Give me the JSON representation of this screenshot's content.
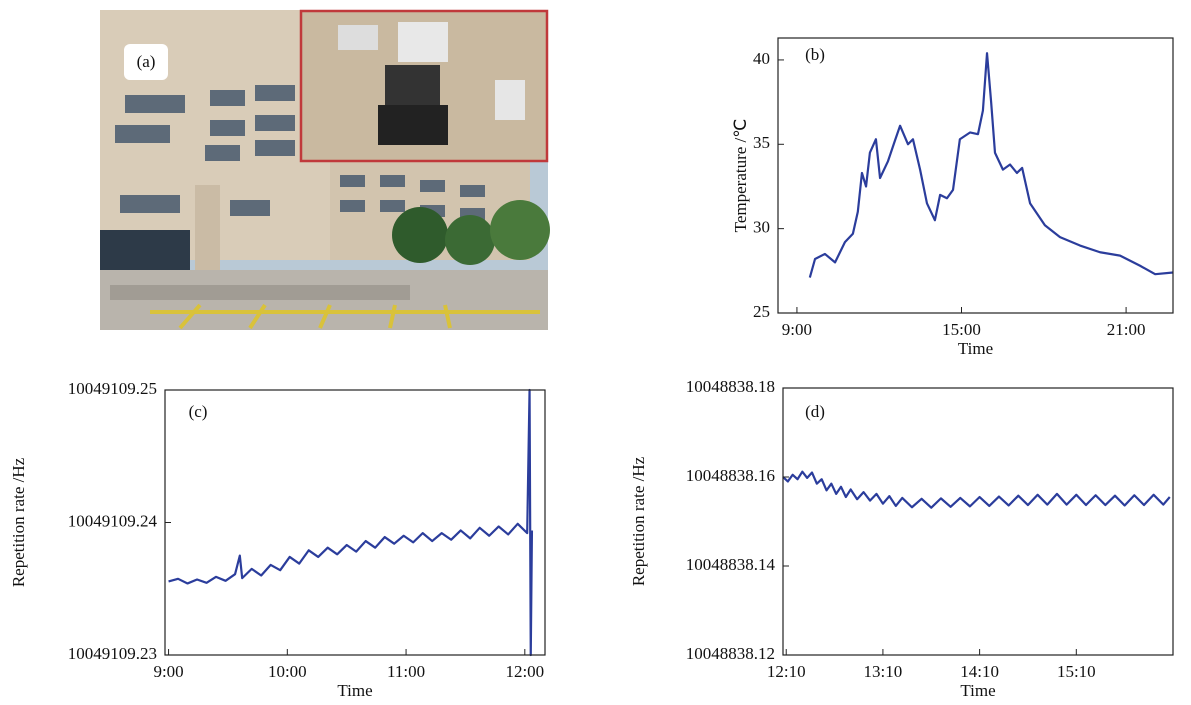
{
  "photo": {
    "label": "(a)"
  },
  "chart_data": [
    {
      "type": "line",
      "panel_label": "(b)",
      "xlabel": "Time",
      "ylabel": "Temperature /℃",
      "color": "#2b3d9c",
      "xlim": [
        8.31,
        22.71
      ],
      "ylim": [
        25,
        41.3
      ],
      "xticks": [
        {
          "value": 9,
          "label": "9:00"
        },
        {
          "value": 15,
          "label": "15:00"
        },
        {
          "value": 21,
          "label": "21:00"
        }
      ],
      "yticks": [
        25,
        30,
        35,
        40
      ],
      "x": [
        9.47,
        9.66,
        10.02,
        10.39,
        10.75,
        11.04,
        11.22,
        11.37,
        11.52,
        11.66,
        11.88,
        12.03,
        12.32,
        12.57,
        12.76,
        13.05,
        13.23,
        13.49,
        13.74,
        14.03,
        14.22,
        14.47,
        14.69,
        14.94,
        15.31,
        15.6,
        15.78,
        15.93,
        16.08,
        16.22,
        16.51,
        16.77,
        17.02,
        17.21,
        17.5,
        18.04,
        18.59,
        19.32,
        20.05,
        20.78,
        21.51,
        22.06,
        22.71
      ],
      "values": [
        27.1,
        28.2,
        28.5,
        28.0,
        29.2,
        29.7,
        31.0,
        33.3,
        32.5,
        34.5,
        35.3,
        33.0,
        34.0,
        35.2,
        36.1,
        35.0,
        35.3,
        33.5,
        31.5,
        30.5,
        32.0,
        31.8,
        32.3,
        35.3,
        35.7,
        35.6,
        37.0,
        40.4,
        37.5,
        34.5,
        33.5,
        33.8,
        33.3,
        33.6,
        31.5,
        30.2,
        29.5,
        29.0,
        28.6,
        28.4,
        27.8,
        27.3,
        27.4
      ]
    },
    {
      "type": "line",
      "panel_label": "(c)",
      "xlabel": "Time",
      "ylabel": "Repetition rate /Hz",
      "color": "#2b3d9c",
      "xlim": [
        8.97,
        12.17
      ],
      "ylim": [
        10049109.23,
        10049109.25
      ],
      "xticks": [
        {
          "value": 9,
          "label": "9:00"
        },
        {
          "value": 10,
          "label": "10:00"
        },
        {
          "value": 11,
          "label": "11:00"
        },
        {
          "value": 12,
          "label": "12:00"
        }
      ],
      "yticks": [
        10049109.23,
        10049109.24,
        10049109.25
      ],
      "x": [
        9.0,
        9.08,
        9.16,
        9.24,
        9.32,
        9.4,
        9.48,
        9.56,
        9.6,
        9.62,
        9.7,
        9.78,
        9.86,
        9.94,
        10.02,
        10.1,
        10.18,
        10.26,
        10.34,
        10.42,
        10.5,
        10.58,
        10.66,
        10.74,
        10.82,
        10.9,
        10.98,
        11.06,
        11.14,
        11.22,
        11.3,
        11.38,
        11.46,
        11.54,
        11.62,
        11.7,
        11.78,
        11.86,
        11.94,
        12.02,
        12.04,
        12.05,
        12.06
      ],
      "values": [
        10049109.23555,
        10049109.23575,
        10049109.2354,
        10049109.2357,
        10049109.23545,
        10049109.2359,
        10049109.2356,
        10049109.2361,
        10049109.2375,
        10049109.2358,
        10049109.2365,
        10049109.236,
        10049109.2368,
        10049109.2364,
        10049109.2374,
        10049109.2369,
        10049109.2379,
        10049109.2374,
        10049109.2381,
        10049109.2376,
        10049109.2383,
        10049109.2378,
        10049109.2386,
        10049109.2381,
        10049109.2389,
        10049109.2384,
        10049109.239,
        10049109.2385,
        10049109.2392,
        10049109.2386,
        10049109.2392,
        10049109.2387,
        10049109.2394,
        10049109.2388,
        10049109.2396,
        10049109.239,
        10049109.2397,
        10049109.2391,
        10049109.2399,
        10049109.2392,
        10049109.25,
        10049109.23,
        10049109.2394
      ]
    },
    {
      "type": "line",
      "panel_label": "(d)",
      "xlabel": "Time",
      "ylabel": "Repetition rate /Hz",
      "color": "#2b3d9c",
      "xlim": [
        728,
        970
      ],
      "ylim": [
        10048838.12,
        10048838.18
      ],
      "xticks": [
        {
          "value": 730,
          "label": "12:10"
        },
        {
          "value": 790,
          "label": "13:10"
        },
        {
          "value": 850,
          "label": "14:10"
        },
        {
          "value": 910,
          "label": "15:10"
        }
      ],
      "yticks": [
        10048838.12,
        10048838.14,
        10048838.16,
        10048838.18
      ],
      "x": [
        728,
        731,
        734,
        737,
        740,
        743,
        746,
        749,
        752,
        755,
        758,
        761,
        764,
        767,
        770,
        774,
        778,
        782,
        786,
        790,
        794,
        798,
        802,
        808,
        814,
        820,
        826,
        832,
        838,
        844,
        850,
        856,
        862,
        868,
        874,
        880,
        886,
        892,
        898,
        904,
        910,
        916,
        922,
        928,
        934,
        940,
        946,
        952,
        958,
        964,
        968
      ],
      "values": [
        10048838.16,
        10048838.159,
        10048838.1605,
        10048838.1595,
        10048838.1612,
        10048838.1598,
        10048838.161,
        10048838.1585,
        10048838.1595,
        10048838.157,
        10048838.1585,
        10048838.1562,
        10048838.1578,
        10048838.1555,
        10048838.1572,
        10048838.155,
        10048838.1566,
        10048838.1547,
        10048838.1562,
        10048838.154,
        10048838.1557,
        10048838.1535,
        10048838.1553,
        10048838.1532,
        10048838.1551,
        10048838.1531,
        10048838.1552,
        10048838.1533,
        10048838.1553,
        10048838.1534,
        10048838.1555,
        10048838.1535,
        10048838.1556,
        10048838.1536,
        10048838.1558,
        10048838.1537,
        10048838.156,
        10048838.1538,
        10048838.1562,
        10048838.1538,
        10048838.156,
        10048838.1537,
        10048838.1559,
        10048838.1537,
        10048838.1558,
        10048838.1536,
        10048838.1559,
        10048838.1537,
        10048838.156,
        10048838.1538,
        10048838.1555
      ]
    }
  ]
}
